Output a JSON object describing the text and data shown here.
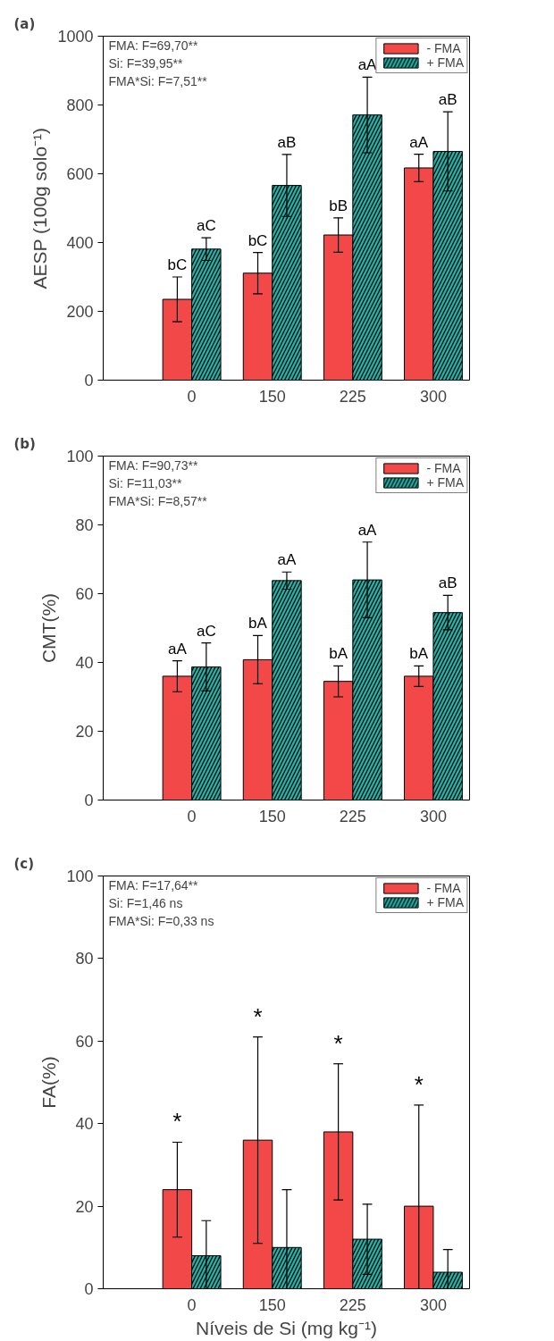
{
  "chart_data": [
    {
      "type": "bar",
      "title": "(a)",
      "ylabel": "AESP (100g solo⁻¹)",
      "categories": [
        "0",
        "150",
        "225",
        "300"
      ],
      "ylim": [
        0,
        1000
      ],
      "yticks": [
        0,
        200,
        400,
        600,
        800,
        1000
      ],
      "grid": false,
      "legend": "top right",
      "annotations": [
        "FMA: F=69,70**",
        "Si: F=39,95**",
        "FMA*Si: F=7,51**"
      ],
      "series": [
        {
          "name": "- FMA",
          "color": "#f24848",
          "values": [
            235,
            311,
            422,
            617
          ],
          "errors": [
            65,
            60,
            50,
            40
          ],
          "value_labels": [
            "bC",
            "bC",
            "bB",
            "aA"
          ]
        },
        {
          "name": "+ FMA",
          "color": "#1fb5aa",
          "values": [
            381,
            566,
            771,
            665
          ],
          "errors": [
            33,
            90,
            110,
            115
          ],
          "value_labels": [
            "aC",
            "aB",
            "aA",
            "aB"
          ]
        }
      ]
    },
    {
      "type": "bar",
      "title": "(b)",
      "ylabel": "CMT(%)",
      "categories": [
        "0",
        "150",
        "225",
        "300"
      ],
      "ylim": [
        0,
        100
      ],
      "yticks": [
        0,
        20,
        40,
        60,
        80,
        100
      ],
      "grid": false,
      "legend": "top right",
      "annotations": [
        "FMA: F=90,73**",
        "Si: F=11,03**",
        "FMA*Si: F=8,57**"
      ],
      "series": [
        {
          "name": "- FMA",
          "color": "#f24848",
          "values": [
            36,
            40.8,
            34.5,
            36
          ],
          "errors": [
            4.5,
            7,
            4.5,
            3
          ],
          "value_labels": [
            "aA",
            "bA",
            "bA",
            "bA"
          ]
        },
        {
          "name": "+ FMA",
          "color": "#1fb5aa",
          "values": [
            38.7,
            63.8,
            64,
            54.5
          ],
          "errors": [
            7,
            2.5,
            11,
            5
          ],
          "value_labels": [
            "aC",
            "aA",
            "aA",
            "aB"
          ]
        }
      ]
    },
    {
      "type": "bar",
      "title": "(c)",
      "ylabel": "FA(%)",
      "xlabel": "Níveis de Si (mg kg⁻¹)",
      "categories": [
        "0",
        "150",
        "225",
        "300"
      ],
      "ylim": [
        0,
        100
      ],
      "yticks": [
        0,
        20,
        40,
        60,
        80,
        100
      ],
      "grid": false,
      "legend": "top right",
      "annotations": [
        "FMA: F=17,64**",
        "Si: F=1,46 ns",
        "FMA*Si: F=0,33 ns",
        "*",
        "*",
        "*",
        "*"
      ],
      "series": [
        {
          "name": "- FMA",
          "color": "#f24848",
          "values": [
            24,
            36,
            38,
            20
          ],
          "errors": [
            11.5,
            25,
            16.5,
            24.5
          ]
        },
        {
          "name": "+ FMA",
          "color": "#1fb5aa",
          "values": [
            8,
            10,
            12,
            4
          ],
          "errors": [
            8.5,
            14,
            8.5,
            5.5
          ]
        }
      ]
    }
  ]
}
